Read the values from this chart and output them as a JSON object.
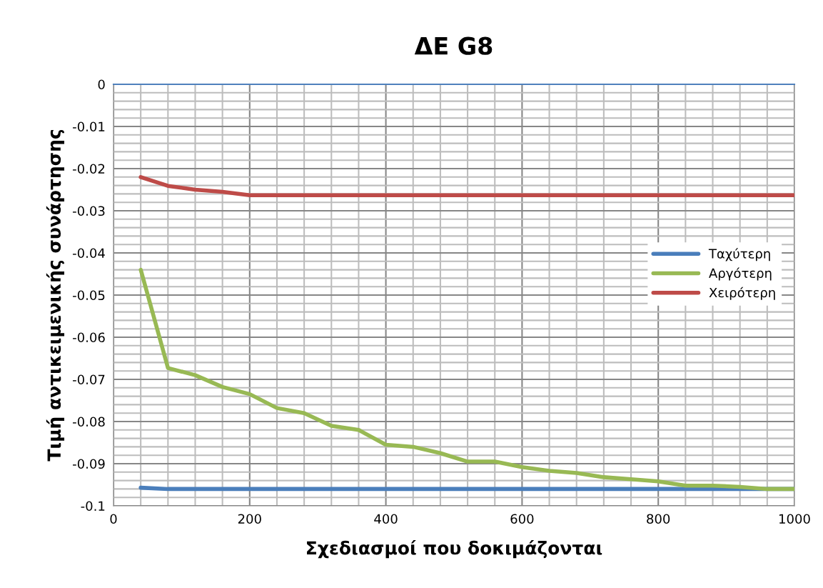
{
  "chart_data": {
    "type": "line",
    "title": "ΔE G8",
    "xlabel": "Σχεδιασμοί που δοκιμάζονται",
    "ylabel": "Τιμή αντικειμενικής συνάρτησης",
    "x": [
      40,
      80,
      120,
      160,
      200,
      240,
      280,
      320,
      360,
      400,
      440,
      480,
      520,
      560,
      600,
      640,
      680,
      720,
      760,
      800,
      840,
      880,
      920,
      960,
      1000
    ],
    "series": [
      {
        "name": "Ταχύτερη",
        "color": "#4a7ebb",
        "values": [
          -0.0957,
          -0.096,
          -0.096,
          -0.096,
          -0.096,
          -0.096,
          -0.096,
          -0.096,
          -0.096,
          -0.096,
          -0.096,
          -0.096,
          -0.096,
          -0.096,
          -0.096,
          -0.096,
          -0.096,
          -0.096,
          -0.096,
          -0.096,
          -0.096,
          -0.096,
          -0.096,
          -0.096,
          -0.096
        ]
      },
      {
        "name": "Αργότερη",
        "color": "#98b954",
        "values": [
          -0.044,
          -0.0673,
          -0.069,
          -0.0718,
          -0.0735,
          -0.0768,
          -0.078,
          -0.081,
          -0.082,
          -0.0855,
          -0.086,
          -0.0875,
          -0.0895,
          -0.0895,
          -0.0908,
          -0.0917,
          -0.0922,
          -0.0932,
          -0.0937,
          -0.0942,
          -0.0952,
          -0.0952,
          -0.0955,
          -0.096,
          -0.096
        ]
      },
      {
        "name": "Χειρότερη",
        "color": "#be4b48",
        "values": [
          -0.022,
          -0.0241,
          -0.025,
          -0.0255,
          -0.0263,
          -0.0263,
          -0.0263,
          -0.0263,
          -0.0263,
          -0.0263,
          -0.0263,
          -0.0263,
          -0.0263,
          -0.0263,
          -0.0263,
          -0.0263,
          -0.0263,
          -0.0263,
          -0.0263,
          -0.0263,
          -0.0263,
          -0.0263,
          -0.0263,
          -0.0263,
          -0.0263
        ]
      }
    ],
    "xlim": [
      0,
      1000
    ],
    "xticks": [
      0,
      200,
      400,
      600,
      800,
      1000
    ],
    "ylim": [
      -0.1,
      0
    ],
    "yticks": [
      -0.1,
      -0.09,
      -0.08,
      -0.07,
      -0.06,
      -0.05,
      -0.04,
      -0.03,
      -0.02,
      -0.01,
      0
    ],
    "grid": true,
    "legend": "right",
    "marker": "none",
    "line_style": "solid"
  }
}
